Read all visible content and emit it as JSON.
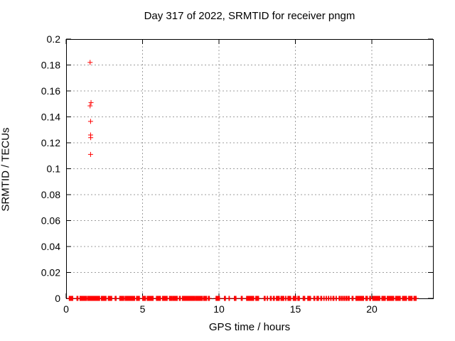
{
  "chart_data": {
    "type": "scatter",
    "title": "Day 317 of 2022, SRMTID for receiver pngm",
    "xlabel": "GPS time / hours",
    "ylabel": "SRMTID / TECUs",
    "xlim": [
      0,
      24
    ],
    "ylim": [
      0,
      0.2
    ],
    "grid": true,
    "legend": "none",
    "marker": "plus",
    "xticks": {
      "values": [
        0,
        5,
        10,
        15,
        20
      ],
      "labels": [
        "0",
        "5",
        "10",
        "15",
        "20"
      ]
    },
    "yticks": {
      "values": [
        0,
        0.02,
        0.04,
        0.06,
        0.08,
        0.1,
        0.12,
        0.14,
        0.16,
        0.18,
        0.2
      ],
      "labels": [
        "0",
        "0.02",
        "0.04",
        "0.06",
        "0.08",
        "0.1",
        "0.12",
        "0.14",
        "0.16",
        "0.18",
        "0.2"
      ]
    },
    "series": [
      {
        "name": "SRMTID",
        "color": "#ff0000",
        "outlier_points": [
          [
            1.57,
            0.182
          ],
          [
            1.63,
            0.151
          ],
          [
            1.57,
            0.1485
          ],
          [
            1.6,
            0.1365
          ],
          [
            1.6,
            0.126
          ],
          [
            1.61,
            0.124
          ],
          [
            1.6,
            0.111
          ]
        ],
        "baseline_value": 0,
        "baseline_sample_step_hours": 0.04,
        "baseline_segments_hours": [
          [
            0.2,
            0.45
          ],
          [
            0.7,
            0.8
          ],
          [
            0.9,
            1.35
          ],
          [
            1.4,
            2.2
          ],
          [
            2.3,
            2.65
          ],
          [
            2.75,
            3.0
          ],
          [
            3.2,
            3.3
          ],
          [
            3.5,
            3.8
          ],
          [
            3.85,
            4.5
          ],
          [
            4.6,
            4.8
          ],
          [
            5.0,
            5.2
          ],
          [
            5.3,
            5.7
          ],
          [
            5.9,
            6.2
          ],
          [
            6.3,
            6.65
          ],
          [
            6.75,
            6.95
          ],
          [
            7.0,
            7.3
          ],
          [
            7.4,
            7.5
          ],
          [
            7.6,
            8.4
          ],
          [
            8.45,
            8.95
          ],
          [
            9.0,
            9.2
          ],
          [
            9.3,
            9.4
          ],
          [
            9.8,
            10.05
          ],
          [
            10.35,
            10.45
          ],
          [
            10.65,
            10.7
          ],
          [
            11.0,
            11.15
          ],
          [
            11.45,
            11.55
          ],
          [
            11.8,
            12.3
          ],
          [
            12.4,
            12.6
          ],
          [
            12.95,
            13.05
          ],
          [
            13.15,
            13.2
          ],
          [
            13.35,
            13.45
          ],
          [
            13.55,
            13.65
          ],
          [
            13.75,
            13.95
          ],
          [
            14.05,
            14.25
          ],
          [
            14.35,
            14.4
          ],
          [
            14.5,
            14.7
          ],
          [
            14.85,
            15.05
          ],
          [
            15.15,
            15.3
          ],
          [
            15.5,
            15.65
          ],
          [
            15.8,
            16.0
          ],
          [
            16.2,
            16.3
          ],
          [
            16.4,
            16.55
          ],
          [
            16.65,
            16.75
          ],
          [
            16.85,
            16.9
          ],
          [
            17.0,
            17.05
          ],
          [
            17.15,
            17.2
          ],
          [
            17.3,
            17.35
          ],
          [
            17.45,
            17.55
          ],
          [
            17.65,
            17.7
          ],
          [
            17.85,
            17.95
          ],
          [
            18.0,
            18.1
          ],
          [
            18.15,
            18.25
          ],
          [
            18.3,
            18.4
          ],
          [
            18.45,
            18.55
          ],
          [
            18.7,
            18.8
          ],
          [
            18.95,
            19.5
          ],
          [
            19.6,
            19.75
          ],
          [
            19.85,
            19.95
          ],
          [
            20.05,
            20.55
          ],
          [
            20.65,
            20.9
          ],
          [
            21.0,
            21.45
          ],
          [
            21.55,
            21.9
          ],
          [
            22.0,
            22.3
          ],
          [
            22.4,
            22.65
          ],
          [
            22.75,
            22.93
          ]
        ]
      }
    ],
    "colors": {
      "marker": "#ff0000",
      "grid": "#9e9e9e",
      "axis": "#000000",
      "background": "#ffffff",
      "text": "#000000"
    }
  }
}
